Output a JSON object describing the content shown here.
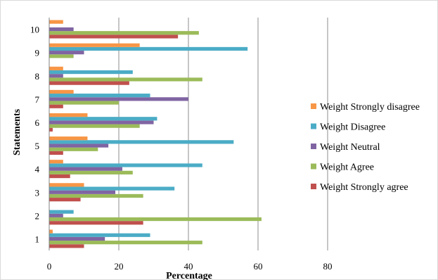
{
  "chart_data": {
    "type": "bar",
    "orientation": "horizontal",
    "title": "",
    "xlabel": "Percentage",
    "ylabel": "Statements",
    "xlim": [
      0,
      80
    ],
    "xticks": [
      "0",
      "20",
      "40",
      "60",
      "80"
    ],
    "grid": "vertical",
    "legend_position": "right",
    "categories": [
      "1",
      "2",
      "3",
      "4",
      "5",
      "6",
      "7",
      "8",
      "9",
      "10"
    ],
    "series": [
      {
        "name": "Weight Strongly agree",
        "color": "#c0504d",
        "values": [
          10,
          27,
          9,
          6,
          4,
          1,
          4,
          23,
          0,
          37
        ]
      },
      {
        "name": "Weight Agree",
        "color": "#9bbb59",
        "values": [
          44,
          61,
          27,
          24,
          14,
          26,
          20,
          44,
          7,
          43
        ]
      },
      {
        "name": "Weight Neutral",
        "color": "#8064a2",
        "values": [
          16,
          4,
          19,
          21,
          17,
          30,
          40,
          4,
          10,
          7
        ]
      },
      {
        "name": "Weight Disagree",
        "color": "#4bacc6",
        "values": [
          29,
          7,
          36,
          44,
          53,
          31,
          29,
          24,
          57,
          0
        ]
      },
      {
        "name": "Weight Strongly disagree",
        "color": "#f79646",
        "values": [
          1,
          0,
          10,
          4,
          11,
          11,
          7,
          4,
          26,
          4
        ]
      }
    ]
  }
}
